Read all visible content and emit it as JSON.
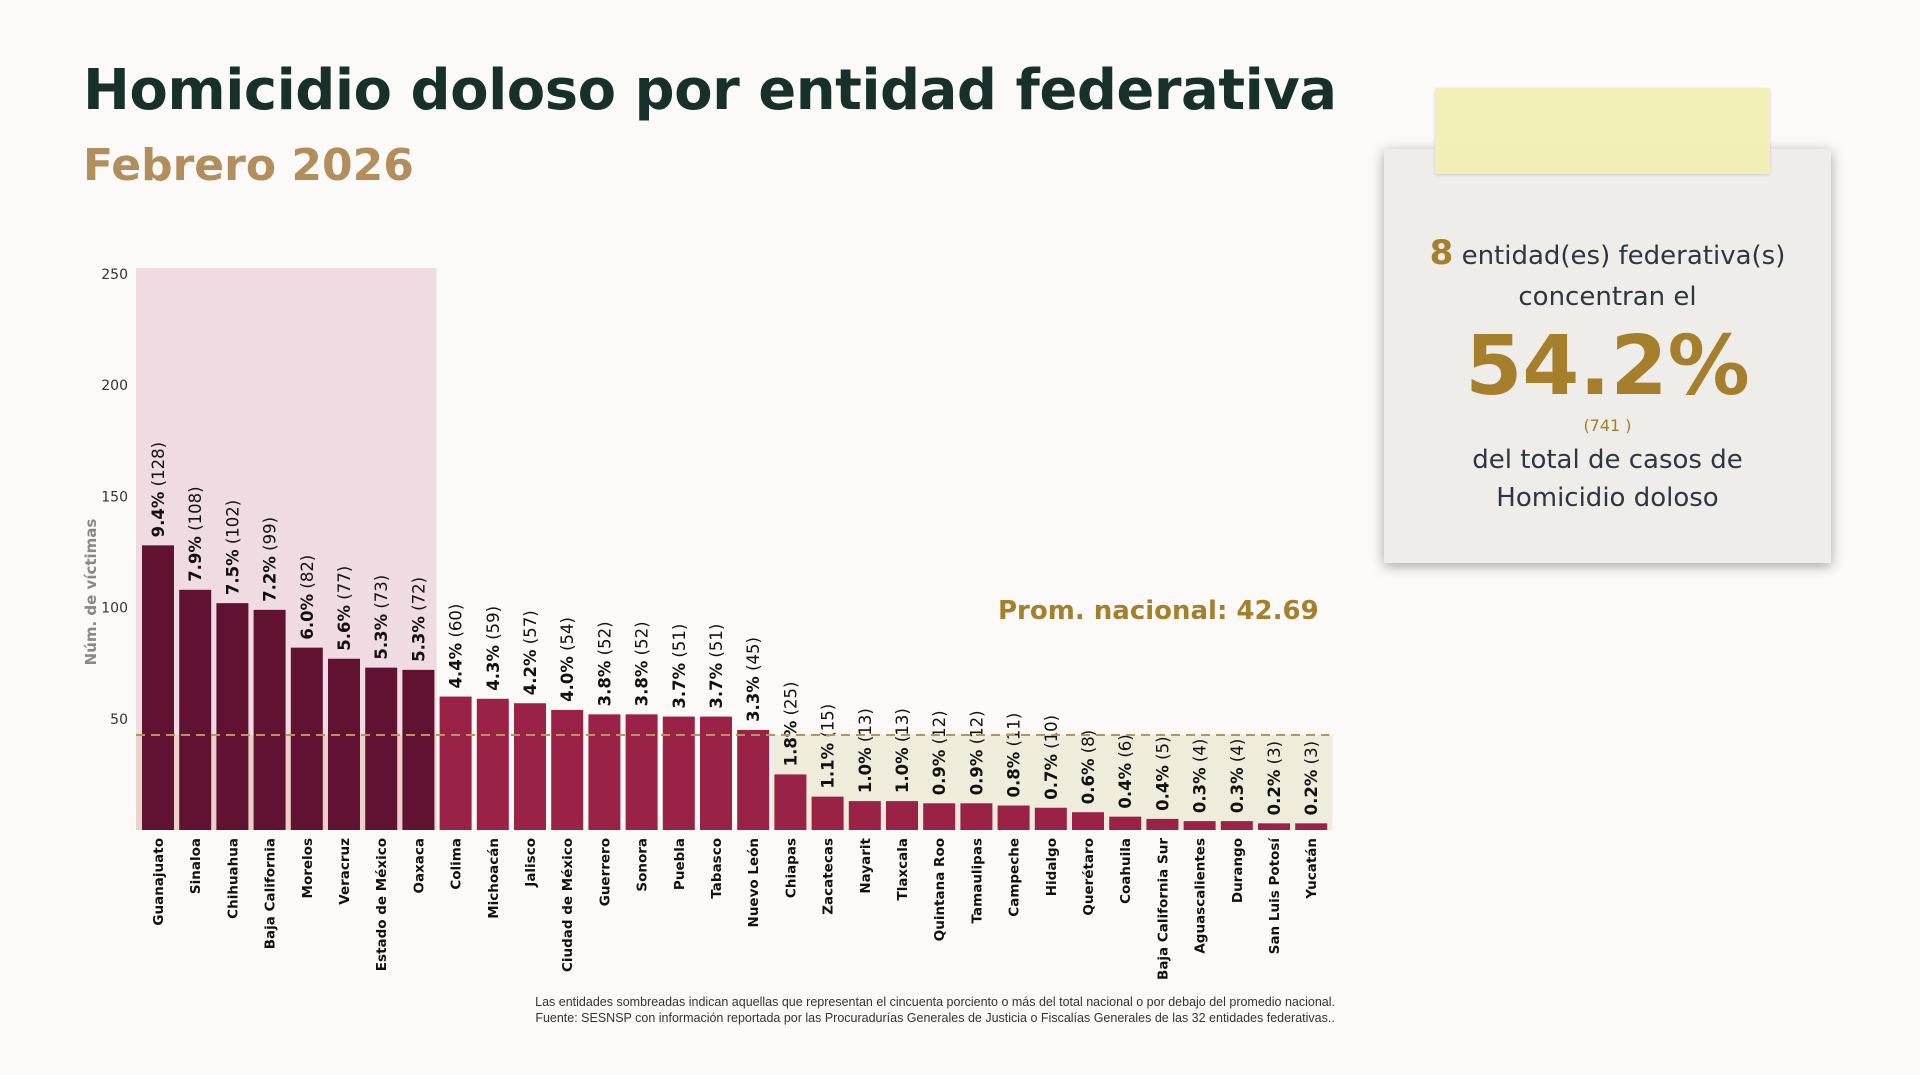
{
  "header": {
    "title": "Homicidio doloso por entidad federativa",
    "subtitle": "Febrero 2026"
  },
  "card": {
    "count": "8",
    "line1": "entidad(es) federativa(s)",
    "line2": "concentran el",
    "percent": "54.2%",
    "cases": "(741 )",
    "line3": "del total de casos de",
    "line4": "Homicidio doloso"
  },
  "footnote": {
    "line1": "Las entidades sombreadas indican aquellas que representan el cincuenta porciento o más del total nacional o por debajo del promedio nacional.",
    "line2": "Fuente: SESNSP con información reportada por las Procuradurías Generales de Justicia o Fiscalías Generales de las 32 entidades federativas.."
  },
  "colors": {
    "top": "#611232",
    "rest": "#9b2247",
    "top_shade": "#f1dbe3",
    "below_shade": "#efecdc",
    "average": "#b5955a",
    "gold": "#a57f2c"
  },
  "chart_data": {
    "type": "bar",
    "ylabel": "Núm. de víctimas",
    "ylim": [
      0,
      250
    ],
    "yticks": [
      50,
      100,
      150,
      200,
      250
    ],
    "grid": false,
    "average": {
      "label": "Prom. nacional: 42.69",
      "value": 42.69
    },
    "top_count": 8,
    "categories": [
      "Guanajuato",
      "Sinaloa",
      "Chihuahua",
      "Baja California",
      "Morelos",
      "Veracruz",
      "Estado de México",
      "Oaxaca",
      "Colima",
      "Michoacán",
      "Jalisco",
      "Ciudad de México",
      "Guerrero",
      "Sonora",
      "Puebla",
      "Tabasco",
      "Nuevo León",
      "Chiapas",
      "Zacatecas",
      "Nayarit",
      "Tlaxcala",
      "Quintana Roo",
      "Tamaulipas",
      "Campeche",
      "Hidalgo",
      "Querétaro",
      "Coahuila",
      "Baja California Sur",
      "Aguascalientes",
      "Durango",
      "San Luis Potosí",
      "Yucatán"
    ],
    "values": [
      128,
      108,
      102,
      99,
      82,
      77,
      73,
      72,
      60,
      59,
      57,
      54,
      52,
      52,
      51,
      51,
      45,
      25,
      15,
      13,
      13,
      12,
      12,
      11,
      10,
      8,
      6,
      5,
      4,
      4,
      3,
      3
    ],
    "percents": [
      "9.4%",
      "7.9%",
      "7.5%",
      "7.2%",
      "6.0%",
      "5.6%",
      "5.3%",
      "5.3%",
      "4.4%",
      "4.3%",
      "4.2%",
      "4.0%",
      "3.8%",
      "3.8%",
      "3.7%",
      "3.7%",
      "3.3%",
      "1.8%",
      "1.1%",
      "1.0%",
      "1.0%",
      "0.9%",
      "0.9%",
      "0.8%",
      "0.7%",
      "0.6%",
      "0.4%",
      "0.4%",
      "0.3%",
      "0.3%",
      "0.2%",
      "0.2%"
    ]
  }
}
